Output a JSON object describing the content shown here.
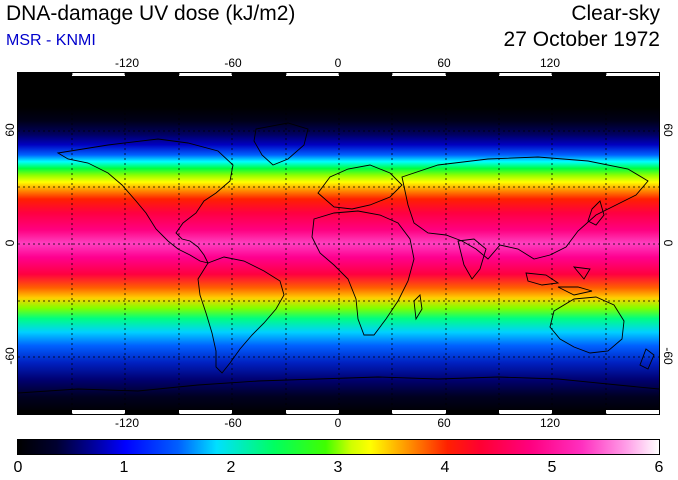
{
  "header": {
    "title": "DNA-damage UV dose (kJ/m2)",
    "subtitle": "MSR - KNMI",
    "sky": "Clear-sky",
    "date": "27 October 1972"
  },
  "map": {
    "lon_labels": [
      "-120",
      "-60",
      "0",
      "60",
      "120"
    ],
    "lat_labels": [
      "60",
      "0",
      "-60"
    ]
  },
  "colorbar": {
    "labels": [
      "0",
      "1",
      "2",
      "3",
      "4",
      "5",
      "6"
    ]
  }
}
